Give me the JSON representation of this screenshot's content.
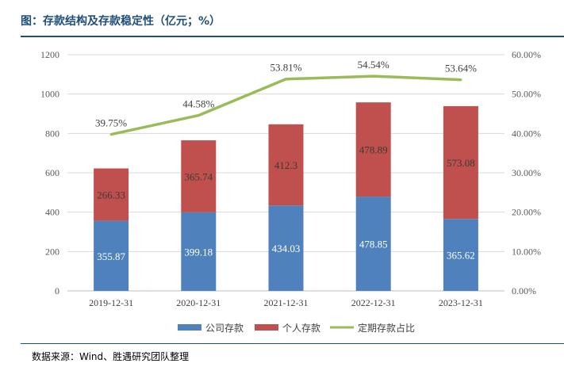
{
  "title": "图：存款结构及存款稳定性（亿元；%）",
  "source": "数据来源：Wind、胜遇研究团队整理",
  "chart_data": {
    "type": "bar",
    "stacked": true,
    "categories": [
      "2019-12-31",
      "2020-12-31",
      "2021-12-31",
      "2022-12-31",
      "2023-12-31"
    ],
    "series": [
      {
        "name": "公司存款",
        "kind": "bar",
        "axis": "left",
        "color": "#4f81bd",
        "values": [
          355.87,
          399.18,
          434.03,
          478.85,
          365.62
        ],
        "labels": [
          "355.87",
          "399.18",
          "434.03",
          "478.85",
          "365.62"
        ]
      },
      {
        "name": "个人存款",
        "kind": "bar",
        "axis": "left",
        "color": "#c0504d",
        "values": [
          266.33,
          365.74,
          412.3,
          478.89,
          573.08
        ],
        "labels": [
          "266.33",
          "365.74",
          "412.3",
          "478.89",
          "573.08"
        ]
      },
      {
        "name": "定期存款占比",
        "kind": "line",
        "axis": "right",
        "color": "#9bbb59",
        "values": [
          39.75,
          44.58,
          53.81,
          54.54,
          53.64
        ],
        "labels": [
          "39.75%",
          "44.58%",
          "53.81%",
          "54.54%",
          "53.64%"
        ]
      }
    ],
    "y_left": {
      "min": 0,
      "max": 1200,
      "ticks": [
        "0",
        "200",
        "400",
        "600",
        "800",
        "1000",
        "1200"
      ]
    },
    "y_right": {
      "min": 0,
      "max": 60,
      "ticks": [
        "0.00%",
        "10.00%",
        "20.00%",
        "30.00%",
        "40.00%",
        "50.00%",
        "60.00%"
      ]
    },
    "grid": true,
    "legend_position": "bottom"
  }
}
